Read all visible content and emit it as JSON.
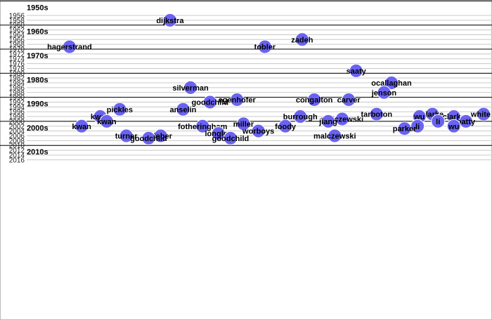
{
  "chart_data": {
    "type": "scatter",
    "title": "",
    "xlabel": "",
    "ylabel": "",
    "ylim": [
      1955,
      2017
    ],
    "y_ticks": [
      1956,
      1958,
      1960,
      1962,
      1964,
      1966,
      1968,
      1970,
      1972,
      1974,
      1976,
      1978,
      1980,
      1982,
      1984,
      1986,
      1988,
      1990,
      1992,
      1994,
      1996,
      1998,
      2000,
      2002,
      2004,
      2006,
      2008,
      2010,
      2012,
      2014,
      2016
    ],
    "decades": [
      {
        "label": "1950s",
        "year": 1950
      },
      {
        "label": "1960s",
        "year": 1960
      },
      {
        "label": "1970s",
        "year": 1970
      },
      {
        "label": "1980s",
        "year": 1980
      },
      {
        "label": "1990s",
        "year": 1990
      },
      {
        "label": "2000s",
        "year": 2000
      },
      {
        "label": "2010s",
        "year": 2010
      }
    ],
    "grid": true,
    "colors": {
      "point": "#6a63f0",
      "grid": "#c8c8c8",
      "decade_line": "#000000"
    },
    "points": [
      {
        "name": "dijkstra",
        "pos": 0.308,
        "year": 1958
      },
      {
        "name": "zadeh",
        "pos": 0.592,
        "year": 1966
      },
      {
        "name": "hagerstrand",
        "pos": 0.092,
        "year": 1969
      },
      {
        "name": "tobler",
        "pos": 0.512,
        "year": 1969
      },
      {
        "name": "saaty",
        "pos": 0.708,
        "year": 1979
      },
      {
        "name": "ocallaghan",
        "pos": 0.784,
        "year": 1984
      },
      {
        "name": "silverman",
        "pos": 0.352,
        "year": 1986
      },
      {
        "name": "jenson",
        "pos": 0.768,
        "year": 1988
      },
      {
        "name": "egenhofer",
        "pos": 0.452,
        "year": 1991
      },
      {
        "name": "congalton",
        "pos": 0.618,
        "year": 1991
      },
      {
        "name": "carver",
        "pos": 0.692,
        "year": 1991
      },
      {
        "name": "goodchild",
        "pos": 0.394,
        "year": 1992
      },
      {
        "name": "pickles",
        "pos": 0.2,
        "year": 1995
      },
      {
        "name": "anselin",
        "pos": 0.336,
        "year": 1995
      },
      {
        "name": "tarboton",
        "pos": 0.752,
        "year": 1997
      },
      {
        "name": "white",
        "pos": 0.982,
        "year": 1997
      },
      {
        "name": "clarke",
        "pos": 0.872,
        "year": 1997
      },
      {
        "name": "kwan",
        "pos": 0.158,
        "year": 1998
      },
      {
        "name": "burrough",
        "pos": 0.588,
        "year": 1998
      },
      {
        "name": "wu",
        "pos": 0.844,
        "year": 1998
      },
      {
        "name": "clarke",
        "pos": 0.918,
        "year": 1998
      },
      {
        "name": "malczewski",
        "pos": 0.678,
        "year": 1999
      },
      {
        "name": "kwan",
        "pos": 0.172,
        "year": 2000
      },
      {
        "name": "jiang",
        "pos": 0.648,
        "year": 2000
      },
      {
        "name": "li",
        "pos": 0.884,
        "year": 2000
      },
      {
        "name": "batty",
        "pos": 0.944,
        "year": 2000
      },
      {
        "name": "miller",
        "pos": 0.466,
        "year": 2001
      },
      {
        "name": "kwan",
        "pos": 0.118,
        "year": 2002
      },
      {
        "name": "fotheringham",
        "pos": 0.378,
        "year": 2002
      },
      {
        "name": "foody",
        "pos": 0.556,
        "year": 2002
      },
      {
        "name": "li",
        "pos": 0.84,
        "year": 2002
      },
      {
        "name": "wu",
        "pos": 0.918,
        "year": 2002
      },
      {
        "name": "parker",
        "pos": 0.812,
        "year": 2003
      },
      {
        "name": "worboys",
        "pos": 0.498,
        "year": 2004
      },
      {
        "name": "longley",
        "pos": 0.412,
        "year": 2005
      },
      {
        "name": "turner",
        "pos": 0.214,
        "year": 2006
      },
      {
        "name": "sieber",
        "pos": 0.288,
        "year": 2006
      },
      {
        "name": "malczewski",
        "pos": 0.662,
        "year": 2006
      },
      {
        "name": "goodchild",
        "pos": 0.262,
        "year": 2007
      },
      {
        "name": "goodchild",
        "pos": 0.438,
        "year": 2007
      }
    ]
  }
}
